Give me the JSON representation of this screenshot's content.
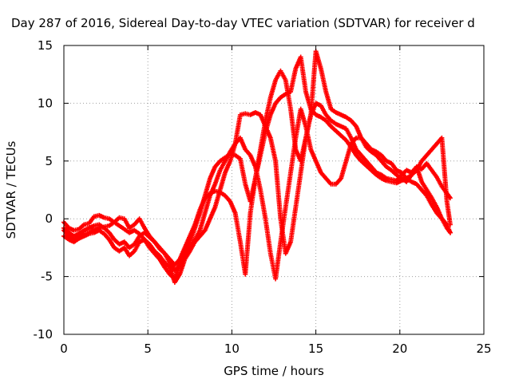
{
  "chart_data": {
    "type": "scatter",
    "title": "Day 287 of 2016, Sidereal Day-to-day VTEC variation (SDTVAR) for receiver d",
    "xlabel": "GPS time / hours",
    "ylabel": "SDTVAR / TECUs",
    "xlim": [
      0,
      25
    ],
    "ylim": [
      -10,
      15
    ],
    "xticks": [
      "0",
      "5",
      "10",
      "15",
      "20",
      "25"
    ],
    "yticks": [
      "-10",
      "-5",
      "0",
      "5",
      "10",
      "15"
    ],
    "grid": true,
    "marker": "+",
    "color": "#ff0000",
    "series": [
      {
        "x": [
          0,
          0.3,
          0.6,
          0.9,
          1.2,
          1.5,
          1.8,
          2.1,
          2.4,
          2.7,
          3.0,
          3.3,
          3.6,
          3.9,
          4.2,
          4.5,
          4.8,
          5.1,
          5.4,
          5.7,
          6.0,
          6.3,
          6.6,
          6.9,
          7.2,
          7.5,
          7.8,
          8.1,
          8.4,
          8.7,
          9.0,
          9.3,
          9.6,
          9.9,
          10.2,
          10.5,
          10.8,
          11.1,
          11.4,
          11.7,
          12.0,
          12.3,
          12.6,
          12.9,
          13.2,
          13.5,
          13.8,
          14.1,
          14.4,
          14.7,
          15.0,
          15.3,
          15.6,
          15.9,
          16.2,
          16.5,
          16.8,
          17.1,
          17.4,
          17.7,
          18.0,
          18.3,
          18.6,
          18.9,
          19.2,
          19.5,
          19.8,
          20.1,
          20.4,
          20.7,
          21.0,
          21.3,
          21.6,
          21.9,
          22.2,
          22.5,
          22.8,
          23.0
        ],
        "y": [
          -0.3,
          -0.8,
          -1.0,
          -0.9,
          -0.5,
          -0.4,
          0.2,
          0.3,
          0.1,
          0.0,
          -0.3,
          0.1,
          0.0,
          -0.8,
          -0.5,
          0.0,
          -0.8,
          -1.5,
          -2.0,
          -2.5,
          -3.0,
          -3.5,
          -4.0,
          -3.5,
          -2.5,
          -1.5,
          -0.5,
          0.8,
          1.8,
          2.2,
          2.4,
          2.3,
          2.0,
          1.5,
          0.5,
          -2.0,
          -4.8,
          0.5,
          3.5,
          6.0,
          8.5,
          10.5,
          12.0,
          12.8,
          12.0,
          9.5,
          6.0,
          5.0,
          7.0,
          9.0,
          10.0,
          9.8,
          9.0,
          8.5,
          8.2,
          8.0,
          7.8,
          7.0,
          6.0,
          5.5,
          5.0,
          4.5,
          4.0,
          3.8,
          3.5,
          3.4,
          3.3,
          3.8,
          4.2,
          4.0,
          4.5,
          4.3,
          4.8,
          4.2,
          3.6,
          2.8,
          2.2,
          1.8
        ]
      },
      {
        "x": [
          0,
          0.3,
          0.6,
          0.9,
          1.2,
          1.5,
          1.8,
          2.1,
          2.4,
          2.7,
          3.0,
          3.3,
          3.6,
          3.9,
          4.2,
          4.5,
          4.8,
          5.1,
          5.4,
          5.7,
          6.0,
          6.3,
          6.6,
          6.9,
          7.2,
          7.5,
          7.8,
          8.1,
          8.4,
          8.7,
          9.0,
          9.3,
          9.6,
          9.9,
          10.2,
          10.5,
          10.8,
          11.1,
          11.4,
          11.7,
          12.0,
          12.3,
          12.6,
          12.9,
          13.2,
          13.5,
          13.8,
          14.1,
          14.4,
          14.7,
          15.0,
          15.3,
          15.6,
          15.9,
          16.2,
          16.5,
          16.8,
          17.1,
          17.4,
          17.7,
          18.0,
          18.3,
          18.6,
          18.9,
          19.2,
          19.5,
          19.8,
          20.1,
          20.4,
          20.7,
          21.0,
          21.3,
          21.6,
          21.9,
          22.2,
          22.5,
          22.8,
          23.0
        ],
        "y": [
          -1.0,
          -1.5,
          -1.8,
          -1.6,
          -1.3,
          -1.2,
          -1.0,
          -0.8,
          -0.7,
          -0.6,
          -0.3,
          -0.6,
          -0.9,
          -1.2,
          -1.0,
          -1.3,
          -1.8,
          -2.5,
          -3.0,
          -3.5,
          -4.2,
          -4.8,
          -5.2,
          -4.0,
          -3.0,
          -2.0,
          -0.8,
          0.5,
          2.0,
          3.5,
          4.5,
          5.0,
          5.3,
          5.6,
          5.5,
          5.2,
          3.0,
          1.5,
          3.5,
          5.5,
          7.5,
          9.0,
          10.0,
          10.5,
          10.8,
          11.0,
          13.0,
          14.0,
          11.0,
          9.5,
          9.0,
          8.8,
          8.5,
          8.0,
          7.6,
          7.2,
          6.8,
          6.2,
          5.5,
          5.0,
          4.6,
          4.2,
          3.8,
          3.5,
          3.3,
          3.2,
          3.1,
          3.3,
          3.5,
          3.8,
          4.2,
          5.0,
          5.5,
          6.0,
          6.5,
          7.0,
          1.5,
          -0.5
        ]
      },
      {
        "x": [
          0,
          0.3,
          0.6,
          0.9,
          1.2,
          1.5,
          1.8,
          2.1,
          2.4,
          2.7,
          3.0,
          3.3,
          3.6,
          3.9,
          4.2,
          4.5,
          4.8,
          5.1,
          5.4,
          5.7,
          6.0,
          6.3,
          6.6,
          6.9,
          7.2,
          7.5,
          7.8,
          8.1,
          8.4,
          8.7,
          9.0,
          9.3,
          9.6,
          9.9,
          10.2,
          10.5,
          10.8,
          11.1,
          11.4,
          11.7,
          12.0,
          12.3,
          12.6,
          12.9,
          13.2,
          13.5,
          13.8,
          14.1,
          14.4,
          14.7,
          15.0,
          15.3,
          15.6,
          15.9,
          16.2,
          16.5,
          16.8,
          17.1,
          17.4,
          17.7,
          18.0,
          18.3,
          18.6,
          18.9,
          19.2,
          19.5,
          19.8,
          20.1,
          20.4,
          20.7,
          21.0,
          21.3,
          21.6,
          21.9,
          22.2,
          22.5,
          22.8,
          23.0
        ],
        "y": [
          -1.5,
          -1.8,
          -2.0,
          -1.7,
          -1.5,
          -1.3,
          -1.2,
          -1.0,
          -1.3,
          -1.8,
          -2.5,
          -2.8,
          -2.5,
          -3.2,
          -2.8,
          -2.0,
          -1.8,
          -2.2,
          -2.8,
          -3.2,
          -3.8,
          -4.2,
          -5.5,
          -4.8,
          -3.5,
          -2.8,
          -2.0,
          -1.5,
          -1.0,
          0.0,
          1.0,
          2.5,
          4.0,
          5.0,
          6.5,
          7.0,
          6.0,
          5.5,
          4.5,
          2.5,
          0.0,
          -3.0,
          -5.2,
          -2.0,
          1.0,
          4.0,
          7.0,
          9.5,
          8.0,
          6.0,
          5.0,
          4.0,
          3.5,
          3.0,
          3.0,
          3.5,
          5.0,
          6.5,
          7.0,
          7.0,
          6.5,
          6.0,
          5.8,
          5.5,
          5.0,
          4.8,
          4.2,
          4.0,
          3.5,
          3.2,
          3.0,
          2.5,
          2.0,
          1.2,
          0.5,
          0.0,
          -0.5,
          -1.2
        ]
      },
      {
        "x": [
          0,
          0.3,
          0.6,
          0.9,
          1.2,
          1.5,
          1.8,
          2.1,
          2.4,
          2.7,
          3.0,
          3.3,
          3.6,
          3.9,
          4.2,
          4.5,
          4.8,
          5.1,
          5.4,
          5.7,
          6.0,
          6.3,
          6.6,
          6.9,
          7.2,
          7.5,
          7.8,
          8.1,
          8.4,
          8.7,
          9.0,
          9.3,
          9.6,
          9.9,
          10.2,
          10.5,
          10.8,
          11.1,
          11.4,
          11.7,
          12.0,
          12.3,
          12.6,
          12.9,
          13.2,
          13.5,
          13.8,
          14.1,
          14.4,
          14.7,
          15.0,
          15.3,
          15.6,
          15.9,
          16.2,
          16.5,
          16.8,
          17.1,
          17.4,
          17.7,
          18.0,
          18.3,
          18.6,
          18.9,
          19.2,
          19.5,
          19.8,
          20.1,
          20.4,
          20.7,
          21.0,
          21.3,
          21.6,
          21.9,
          22.2,
          22.5,
          22.8,
          23.0
        ],
        "y": [
          -0.8,
          -1.2,
          -1.5,
          -1.3,
          -1.0,
          -0.8,
          -0.6,
          -0.5,
          -0.8,
          -1.2,
          -1.8,
          -2.2,
          -2.0,
          -2.5,
          -2.2,
          -1.5,
          -1.2,
          -1.6,
          -2.0,
          -2.6,
          -3.0,
          -3.8,
          -4.5,
          -4.0,
          -3.2,
          -2.5,
          -1.8,
          -1.0,
          0.5,
          2.0,
          3.0,
          4.2,
          5.0,
          5.8,
          6.5,
          9.0,
          9.1,
          9.0,
          9.2,
          9.0,
          8.0,
          7.0,
          5.0,
          0.0,
          -3.0,
          -2.0,
          1.0,
          4.0,
          7.0,
          9.0,
          14.5,
          13.0,
          11.0,
          9.5,
          9.2,
          9.0,
          8.8,
          8.5,
          8.0,
          7.0,
          6.2,
          5.8,
          5.5,
          5.0,
          4.5,
          4.2,
          3.8,
          3.5,
          3.2,
          3.8,
          4.5,
          3.2,
          2.5,
          1.8,
          1.0,
          0.0,
          -0.8,
          -1.2
        ]
      }
    ]
  }
}
